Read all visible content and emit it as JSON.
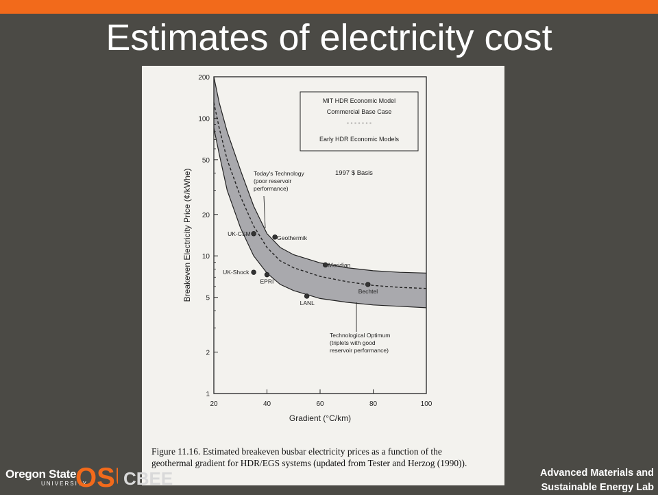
{
  "slide": {
    "title": "Estimates of electricity cost"
  },
  "figure": {
    "caption_line1": "Figure 11.16. Estimated breakeven busbar electricity prices as a function of the",
    "caption_line2": "geothermal gradient for HDR/EGS systems (updated from Tester and Herzog (1990))."
  },
  "footer": {
    "university_name": "Oregon State",
    "university_sub": "UNIVERSITY",
    "osu_mark": "OSU",
    "dept": "CBEE",
    "lab_line1": "Advanced Materials and",
    "lab_line2": "Sustainable Energy Lab"
  },
  "chart_data": {
    "type": "line",
    "xlabel": "Gradient (°C/km)",
    "ylabel": "Breakeven Electricity Price (¢/kWhe)",
    "xlim": [
      20,
      100
    ],
    "ylim": [
      1,
      200
    ],
    "y_scale": "log",
    "x_ticks": [
      20,
      40,
      60,
      80,
      100
    ],
    "y_ticks": [
      1,
      2,
      5,
      10,
      20,
      50,
      100,
      200
    ],
    "legend_box": [
      "MIT HDR Economic Model",
      "Commercial Base Case",
      "- - - - - - -",
      "Early HDR Economic Models"
    ],
    "annotation_basis": "1997 $ Basis",
    "annotation_upper": [
      "Today's Technology",
      "(poor reservoir",
      "performance)"
    ],
    "annotation_lower": [
      "Technological Optimum",
      "(triplets with good",
      "reservoir performance)"
    ],
    "series": [
      {
        "name": "Today's Technology",
        "style": "solid",
        "x": [
          20,
          22,
          25,
          30,
          35,
          40,
          45,
          50,
          60,
          70,
          80,
          90,
          100
        ],
        "y": [
          200,
          130,
          80,
          42,
          23,
          14.5,
          11.5,
          10.2,
          8.9,
          8.2,
          7.8,
          7.6,
          7.5
        ]
      },
      {
        "name": "Commercial Base Case",
        "style": "dashed",
        "x": [
          20,
          22,
          25,
          30,
          35,
          40,
          45,
          50,
          60,
          70,
          80,
          90,
          100
        ],
        "y": [
          130,
          85,
          50,
          27,
          16.5,
          11.5,
          9.2,
          8.2,
          7.1,
          6.5,
          6.1,
          5.9,
          5.8
        ]
      },
      {
        "name": "Technological Optimum",
        "style": "solid",
        "x": [
          20,
          22,
          25,
          30,
          35,
          40,
          45,
          50,
          60,
          70,
          80,
          90,
          100
        ],
        "y": [
          85,
          55,
          30,
          16,
          10,
          7.5,
          6.2,
          5.6,
          4.9,
          4.6,
          4.4,
          4.3,
          4.2
        ]
      }
    ],
    "points": [
      {
        "label": "UK-CSM",
        "x": 35,
        "y": 14.5
      },
      {
        "label": "Geothermik",
        "x": 43,
        "y": 13.7
      },
      {
        "label": "Meridian",
        "x": 62,
        "y": 8.6
      },
      {
        "label": "Bechtel",
        "x": 78,
        "y": 6.2
      },
      {
        "label": "UK-Shock",
        "x": 35,
        "y": 7.6
      },
      {
        "label": "EPRI",
        "x": 40,
        "y": 7.3
      },
      {
        "label": "LANL",
        "x": 55,
        "y": 5.1
      }
    ],
    "grid": false,
    "legend_position": "top-right"
  }
}
